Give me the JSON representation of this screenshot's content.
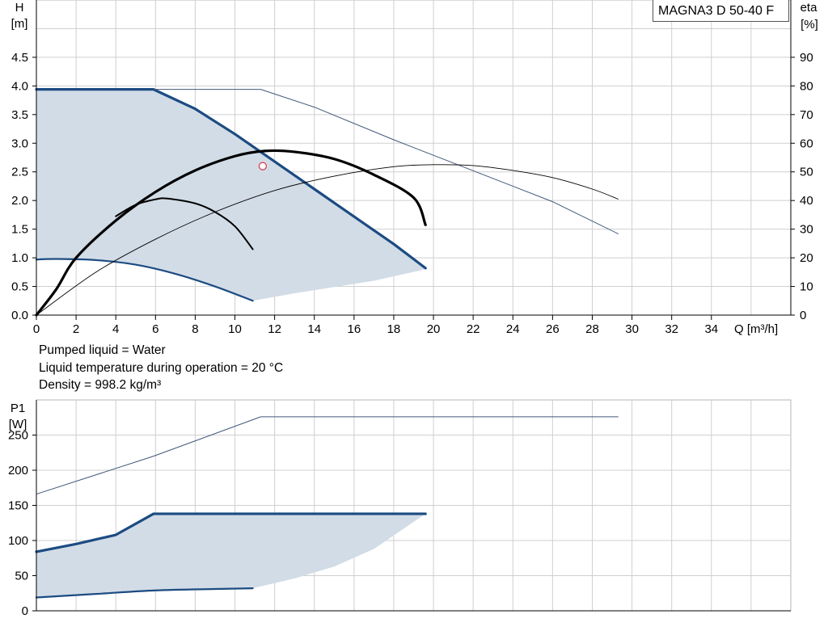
{
  "model": "MAGNA3 D 50-40 F",
  "notes": {
    "liquid": "Pumped liquid = Water",
    "temperature": "Liquid temperature during operation = 20 °C",
    "density": "Density = 998.2 kg/m³"
  },
  "chart_data": [
    {
      "type": "line",
      "name": "head-efficiency",
      "ylabel": "H",
      "yunit": "[m]",
      "y2label": "eta",
      "y2unit": "[%]",
      "xlabel": "Q [m³/h]",
      "xlim": [
        0,
        38
      ],
      "ylim": [
        0,
        5.5
      ],
      "y2lim": [
        0,
        110
      ],
      "xticks": [
        "0",
        "2",
        "4",
        "6",
        "8",
        "10",
        "12",
        "14",
        "16",
        "18",
        "20",
        "22",
        "24",
        "26",
        "28",
        "30",
        "32",
        "34"
      ],
      "yticks": [
        "0.0",
        "0.5",
        "1.0",
        "1.5",
        "2.0",
        "2.5",
        "3.0",
        "3.5",
        "4.0",
        "4.5"
      ],
      "y2ticks": [
        "0",
        "10",
        "20",
        "30",
        "40",
        "50",
        "60",
        "70",
        "80",
        "90"
      ],
      "grid": true,
      "operating_range": {
        "upper": [
          [
            0,
            3.94
          ],
          [
            5.9,
            3.94
          ],
          [
            8,
            3.6
          ],
          [
            10,
            3.16
          ],
          [
            12,
            2.68
          ],
          [
            14,
            2.2
          ],
          [
            16,
            1.72
          ],
          [
            18,
            1.24
          ],
          [
            19.6,
            0.82
          ]
        ],
        "lower": [
          [
            0,
            0.97
          ],
          [
            1,
            0.98
          ],
          [
            3,
            0.96
          ],
          [
            5,
            0.88
          ],
          [
            7,
            0.72
          ],
          [
            9,
            0.5
          ],
          [
            10.9,
            0.25
          ]
        ],
        "bottom": [
          [
            10.9,
            0.25
          ],
          [
            13,
            0.38
          ],
          [
            15,
            0.49
          ],
          [
            17,
            0.6
          ],
          [
            19.6,
            0.8
          ]
        ]
      },
      "series": [
        {
          "role": "head_max_envelope",
          "axis": "y",
          "values": [
            [
              0,
              3.94
            ],
            [
              5.9,
              3.94
            ],
            [
              8,
              3.6
            ],
            [
              10,
              3.16
            ],
            [
              12,
              2.68
            ],
            [
              14,
              2.2
            ],
            [
              16,
              1.72
            ],
            [
              18,
              1.24
            ],
            [
              19.6,
              0.82
            ]
          ]
        },
        {
          "role": "head_min_curve",
          "axis": "y",
          "values": [
            [
              0,
              0.97
            ],
            [
              1,
              0.98
            ],
            [
              3,
              0.96
            ],
            [
              5,
              0.88
            ],
            [
              7,
              0.72
            ],
            [
              9,
              0.5
            ],
            [
              10.9,
              0.25
            ]
          ]
        },
        {
          "role": "head_reference",
          "axis": "y",
          "values": [
            [
              5.9,
              3.94
            ],
            [
              11.3,
              3.94
            ],
            [
              14,
              3.63
            ],
            [
              18,
              3.06
            ],
            [
              22,
              2.52
            ],
            [
              26,
              1.98
            ],
            [
              29.3,
              1.42
            ]
          ]
        },
        {
          "role": "eta_max",
          "axis": "y2",
          "values": [
            [
              0,
              0
            ],
            [
              1,
              9
            ],
            [
              2,
              20
            ],
            [
              4,
              33
            ],
            [
              6,
              43
            ],
            [
              8,
              50.5
            ],
            [
              10,
              55.5
            ],
            [
              11.5,
              57.3
            ],
            [
              13,
              57
            ],
            [
              15,
              54.5
            ],
            [
              17,
              49
            ],
            [
              19,
              41
            ],
            [
              19.6,
              31.5
            ]
          ]
        },
        {
          "role": "eta_min",
          "axis": "y2",
          "values": [
            [
              4,
              34.5
            ],
            [
              5,
              38.5
            ],
            [
              6,
              40.4
            ],
            [
              6.6,
              40.7
            ],
            [
              8,
              39
            ],
            [
              9,
              36
            ],
            [
              10,
              31
            ],
            [
              10.9,
              23
            ]
          ]
        },
        {
          "role": "eta_reference",
          "axis": "y2",
          "values": [
            [
              0,
              0
            ],
            [
              3,
              15
            ],
            [
              6,
              26.5
            ],
            [
              9,
              36
            ],
            [
              12,
              43.5
            ],
            [
              15,
              48.5
            ],
            [
              18,
              51.8
            ],
            [
              20,
              52.5
            ],
            [
              22,
              52.2
            ],
            [
              24,
              50.5
            ],
            [
              26,
              48
            ],
            [
              28,
              44
            ],
            [
              29.3,
              40.5
            ]
          ]
        }
      ],
      "duty_point": [
        11.4,
        2.6
      ]
    },
    {
      "type": "line",
      "name": "power-input",
      "ylabel": "P1",
      "yunit": "[W]",
      "xlim": [
        0,
        38
      ],
      "ylim": [
        0,
        300
      ],
      "yticks": [
        "0",
        "50",
        "100",
        "150",
        "200",
        "250"
      ],
      "grid": true,
      "operating_range": {
        "upper": [
          [
            0,
            84
          ],
          [
            2,
            95
          ],
          [
            4,
            108
          ],
          [
            5.9,
            138
          ],
          [
            19.6,
            138
          ]
        ],
        "lower": [
          [
            0,
            19
          ],
          [
            3,
            24
          ],
          [
            6,
            29
          ],
          [
            9,
            31
          ],
          [
            10.9,
            32
          ]
        ],
        "bottom": [
          [
            10.9,
            32
          ],
          [
            13,
            46
          ],
          [
            15,
            63
          ],
          [
            17,
            88
          ],
          [
            19.6,
            138
          ]
        ]
      },
      "series": [
        {
          "role": "p1_max_envelope",
          "values": [
            [
              0,
              84
            ],
            [
              2,
              95
            ],
            [
              4,
              108
            ],
            [
              5.9,
              138
            ],
            [
              19.6,
              138
            ]
          ]
        },
        {
          "role": "p1_min_curve",
          "values": [
            [
              0,
              19
            ],
            [
              3,
              24
            ],
            [
              6,
              29
            ],
            [
              9,
              31
            ],
            [
              10.9,
              32
            ]
          ]
        },
        {
          "role": "p1_reference",
          "values": [
            [
              0,
              166
            ],
            [
              5.9,
              220
            ],
            [
              11.3,
              276
            ],
            [
              29.3,
              276
            ]
          ]
        }
      ]
    }
  ]
}
